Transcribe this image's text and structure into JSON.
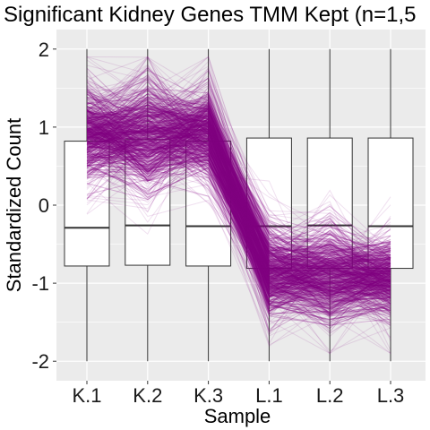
{
  "chart_data": {
    "type": "boxplot",
    "title": "Significant Kidney Genes TMM Kept (n=1,5",
    "xlabel": "Sample",
    "ylabel": "Standardized Count",
    "categories": [
      "K.1",
      "K.2",
      "K.3",
      "L.1",
      "L.2",
      "L.3"
    ],
    "yticks": [
      2,
      1,
      0,
      -1,
      -2
    ],
    "ylim": [
      -2.25,
      2.25
    ],
    "grid": true,
    "boxes": [
      {
        "sample": "K.1",
        "whisker_low": -2.0,
        "q1": -0.78,
        "median": -0.29,
        "q3": 0.82,
        "whisker_high": 2.0
      },
      {
        "sample": "K.2",
        "whisker_low": -2.0,
        "q1": -0.77,
        "median": -0.26,
        "q3": 0.84,
        "whisker_high": 2.0
      },
      {
        "sample": "K.3",
        "whisker_low": -2.0,
        "q1": -0.78,
        "median": -0.27,
        "q3": 0.82,
        "whisker_high": 2.0
      },
      {
        "sample": "L.1",
        "whisker_low": -2.0,
        "q1": -0.81,
        "median": -0.27,
        "q3": 0.86,
        "whisker_high": 2.0
      },
      {
        "sample": "L.2",
        "whisker_low": -2.0,
        "q1": -0.81,
        "median": -0.26,
        "q3": 0.86,
        "whisker_high": 2.0
      },
      {
        "sample": "L.3",
        "whisker_low": -2.0,
        "q1": -0.81,
        "median": -0.27,
        "q3": 0.86,
        "whisker_high": 2.0
      }
    ],
    "parallel_lines": {
      "color": "#800080",
      "mean_profile": [
        0.9,
        0.88,
        0.92,
        -0.85,
        -0.9,
        -0.92
      ],
      "spread": [
        0.28,
        0.35,
        0.28,
        0.25,
        0.28,
        0.25
      ]
    },
    "colors": {
      "panel_background": "#ebebeb",
      "grid": "#ffffff",
      "box_fill": "#ffffff",
      "box_stroke": "#333333",
      "lines": "#800080"
    }
  }
}
